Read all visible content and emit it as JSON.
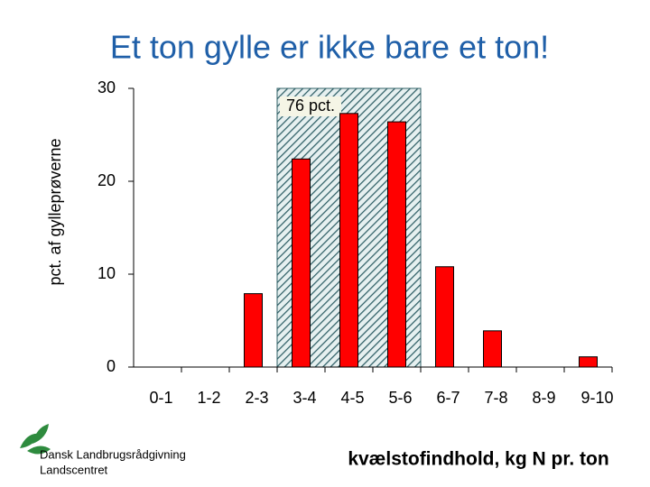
{
  "chart_data": {
    "type": "bar",
    "title": "Et ton gylle er ikke bare et ton!",
    "ylabel": "pct. af gylleprøverne",
    "xlabel": "kvælstofindhold, kg N pr. ton",
    "annotation": "76 pct.",
    "footer": [
      "Dansk Landbrugsrådgivning",
      "Landscentret"
    ],
    "categories": [
      "0-1",
      "1-2",
      "2-3",
      "3-4",
      "4-5",
      "5-6",
      "6-7",
      "7-8",
      "8-9",
      "9-10"
    ],
    "values": [
      0,
      0,
      7.9,
      22.4,
      27.3,
      26.4,
      10.8,
      3.9,
      0,
      1.1
    ],
    "color": "#ff0000",
    "ylim": [
      0,
      30
    ],
    "yticks": [
      0,
      10,
      20,
      30
    ],
    "grid": false
  }
}
